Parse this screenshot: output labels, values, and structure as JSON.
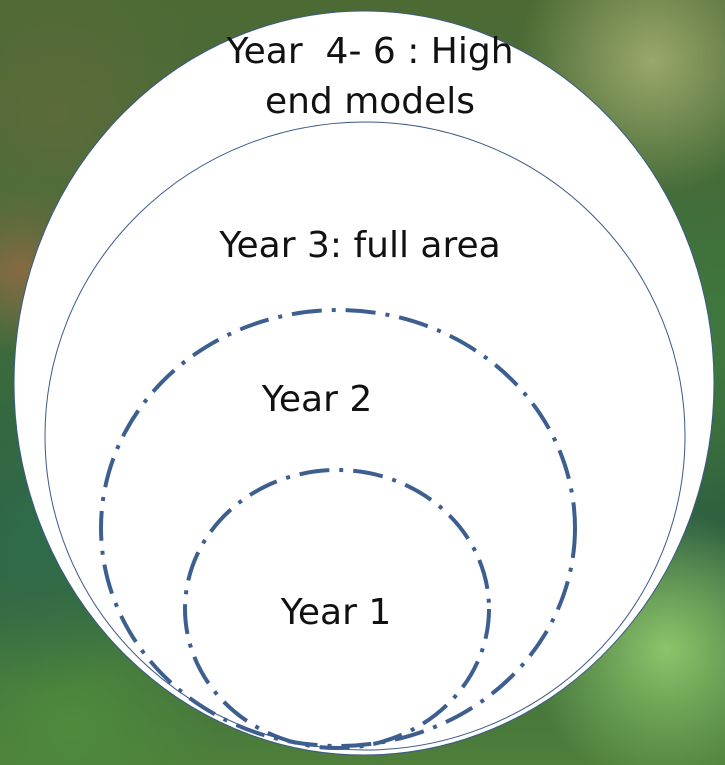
{
  "nodes": [
    {
      "lines": [
        "Year  4- 6 : High",
        "end models"
      ]
    },
    {
      "label": "Year 3: full area"
    },
    {
      "label": "Year 2"
    },
    {
      "label": "Year 1"
    }
  ]
}
